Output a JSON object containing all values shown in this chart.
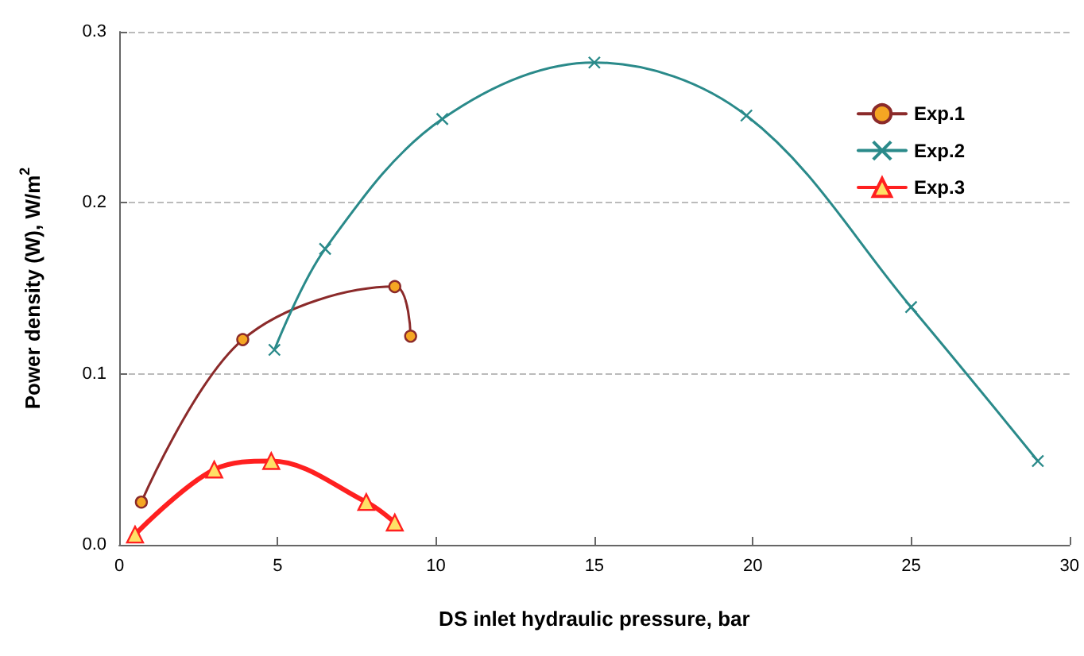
{
  "chart_data": {
    "type": "line",
    "xlabel": "DS inlet hydraulic pressure, bar",
    "ylabel": "Power density (W), W/m$^{2}$",
    "xlim": [
      0,
      30
    ],
    "xticks": [
      0,
      5,
      10,
      15,
      20,
      25,
      30
    ],
    "ylim": [
      0,
      0.3
    ],
    "yticks": [
      {
        "value": 0,
        "label": "0.0"
      },
      {
        "value": 0.1,
        "label": "0.1"
      },
      {
        "value": 0.2,
        "label": "0.2"
      },
      {
        "value": 0.3,
        "label": "0.3"
      }
    ],
    "grid": "y",
    "legend": "top right",
    "line_style": "solid",
    "series": [
      {
        "name": "Exp.1",
        "color": "#8b2a2a",
        "marker": "circle",
        "x": [
          0.7,
          3.9,
          8.7,
          9.2
        ],
        "values": [
          0.025,
          0.12,
          0.151,
          0.122
        ]
      },
      {
        "name": "Exp.2",
        "color": "#2a8a8a",
        "marker": "cross",
        "x": [
          4.9,
          6.5,
          10.2,
          15,
          19.8,
          25,
          29
        ],
        "values": [
          0.114,
          0.173,
          0.249,
          0.282,
          0.251,
          0.139,
          0.049
        ]
      },
      {
        "name": "Exp.3",
        "color": "#ff2020",
        "marker": "triangle",
        "x": [
          0.5,
          3,
          4.8,
          7.8,
          8.7
        ],
        "values": [
          0.006,
          0.044,
          0.049,
          0.025,
          0.013
        ]
      }
    ]
  }
}
